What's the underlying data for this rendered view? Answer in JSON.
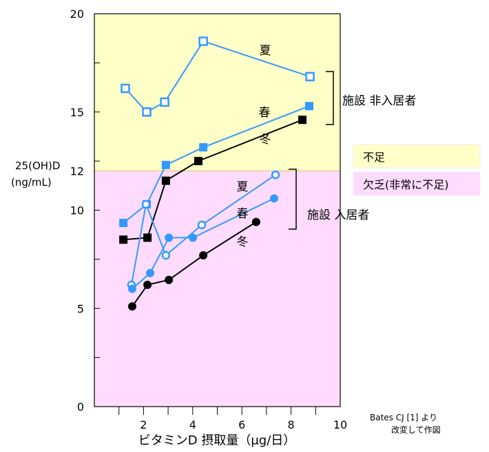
{
  "chart_data": {
    "type": "line",
    "xlabel": "ビタミンD 摂取量（μg/日）",
    "ylabel": [
      "25(OH)D",
      "(ng/mL)"
    ],
    "xlim": [
      0,
      10
    ],
    "ylim": [
      0,
      20
    ],
    "xticks": [
      2,
      4,
      6,
      8,
      10
    ],
    "yticks": [
      0,
      5,
      10,
      12,
      15,
      20
    ],
    "bands": [
      {
        "name": "不足",
        "from": 12,
        "to": 20,
        "color": "#ffffc8"
      },
      {
        "name": "欠乏(非常に不足)",
        "from": 0,
        "to": 12,
        "color": "#ffdcff"
      }
    ],
    "groups": [
      {
        "name": "施設 非入居者",
        "series": [
          {
            "name": "夏",
            "marker": "square-open",
            "color": "#3399ff",
            "x": [
              1.26,
              2.13,
              2.86,
              4.43,
              8.77
            ],
            "y": [
              16.2,
              15.0,
              15.5,
              18.6,
              16.8
            ]
          },
          {
            "name": "春",
            "marker": "square",
            "color": "#3399ff",
            "x": [
              1.18,
              2.13,
              2.91,
              4.43,
              8.74
            ],
            "y": [
              9.35,
              10.3,
              12.3,
              13.2,
              15.3
            ]
          },
          {
            "name": "冬",
            "marker": "square",
            "color": "#000000",
            "x": [
              1.18,
              2.16,
              2.91,
              4.23,
              8.46
            ],
            "y": [
              8.5,
              8.6,
              11.5,
              12.5,
              14.6
            ]
          }
        ]
      },
      {
        "name": "施設 入居者",
        "series": [
          {
            "name": "夏",
            "marker": "circle-open",
            "color": "#3399ff",
            "x": [
              1.51,
              2.1,
              2.91,
              4.37,
              7.37
            ],
            "y": [
              6.2,
              10.3,
              7.7,
              9.25,
              11.8
            ]
          },
          {
            "name": "春",
            "marker": "circle",
            "color": "#3399ff",
            "x": [
              1.54,
              2.27,
              3.03,
              4.01,
              7.31
            ],
            "y": [
              6.0,
              6.8,
              8.6,
              8.6,
              10.6
            ]
          },
          {
            "name": "冬",
            "marker": "circle",
            "color": "#000000",
            "x": [
              1.54,
              2.16,
              3.03,
              4.43,
              6.58
            ],
            "y": [
              5.1,
              6.2,
              6.45,
              7.7,
              9.4
            ]
          }
        ]
      }
    ],
    "season_labels": {
      "nonres": [
        "夏",
        "春",
        "冬"
      ],
      "res": [
        "夏",
        "春",
        "冬"
      ]
    },
    "legend": [
      "不足",
      "欠乏(非常に不足)"
    ],
    "source": [
      "Bates CJ [1] より",
      "改変して作図"
    ]
  }
}
